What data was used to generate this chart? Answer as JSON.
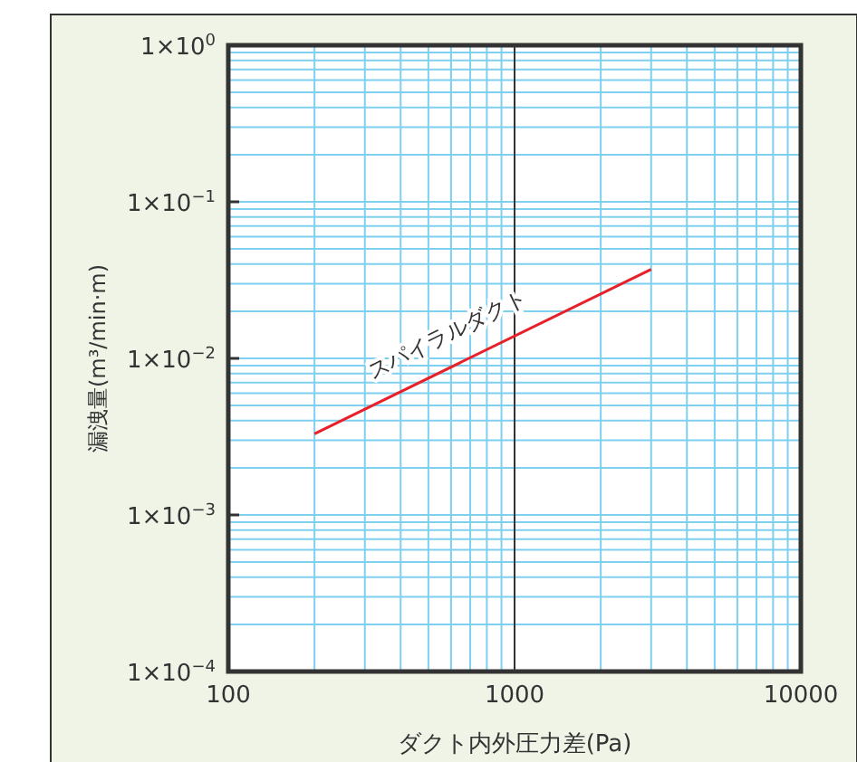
{
  "chart_data": {
    "type": "line",
    "xlabel": "ダクト内外圧力差(Pa)",
    "ylabel": "漏洩量(m³/min·m)",
    "log": "xy",
    "x": [
      200,
      3000
    ],
    "series": [
      {
        "name": "スパイラルダクト",
        "color": "#e8202a",
        "values": [
          0.0033,
          0.037
        ]
      }
    ],
    "xlim": [
      100,
      10000
    ],
    "xticks": [
      100,
      1000,
      10000
    ],
    "ylim": [
      0.0001,
      1
    ],
    "yticks": [
      {
        "value": 0.0001,
        "label": "1×10$^{−4}$"
      },
      {
        "value": 0.001,
        "label": "1×10$^{−3}$"
      },
      {
        "value": 0.01,
        "label": "1×10$^{−2}$"
      },
      {
        "value": 0.1,
        "label": "1×10$^{−1}$"
      },
      {
        "value": 1,
        "label": "1×10$^{0}$"
      }
    ],
    "grid": true,
    "ref_lines": [
      {
        "axis": "x",
        "value": 1000,
        "color": "#333333"
      }
    ]
  }
}
